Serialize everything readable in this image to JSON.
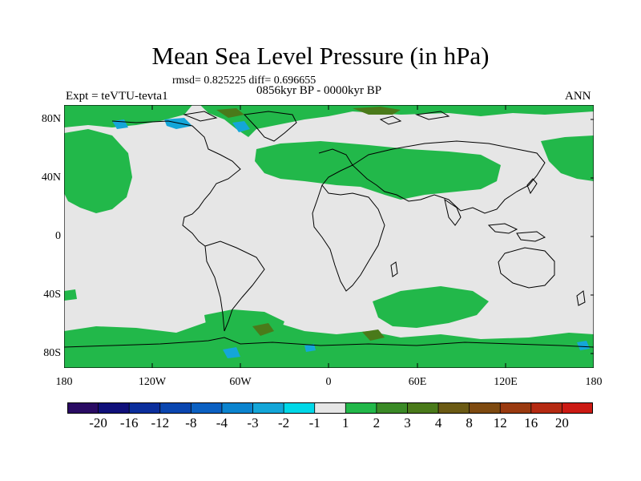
{
  "title": "Mean Sea Level Pressure (in hPa)",
  "stats": "rmsd= 0.825225 diff= 0.696655",
  "period": "0856kyr BP - 0000kyr BP",
  "experiment": "Expt = teVTU-tevta1",
  "season": "ANN",
  "map": {
    "background_color": "#e6e6e6",
    "lat_labels": [
      "80N",
      "40N",
      "0",
      "40S",
      "80S"
    ],
    "lon_labels": [
      "180",
      "120W",
      "60W",
      "0",
      "60E",
      "120E",
      "180"
    ]
  },
  "colorbar": {
    "colors": [
      "#2a0b63",
      "#10107a",
      "#0b2e9c",
      "#0a46b0",
      "#0b60c2",
      "#0b84cf",
      "#14a6d8",
      "#00d8e8",
      "#e6e6e6",
      "#22b84a",
      "#3a8a26",
      "#4a7a1a",
      "#6b5a14",
      "#7e4a10",
      "#9a3a10",
      "#b52a12",
      "#cc1a14"
    ],
    "labels": [
      "-20",
      "-16",
      "-12",
      "-8",
      "-4",
      "-3",
      "-2",
      "-1",
      "1",
      "2",
      "3",
      "4",
      "8",
      "12",
      "16",
      "20"
    ]
  }
}
